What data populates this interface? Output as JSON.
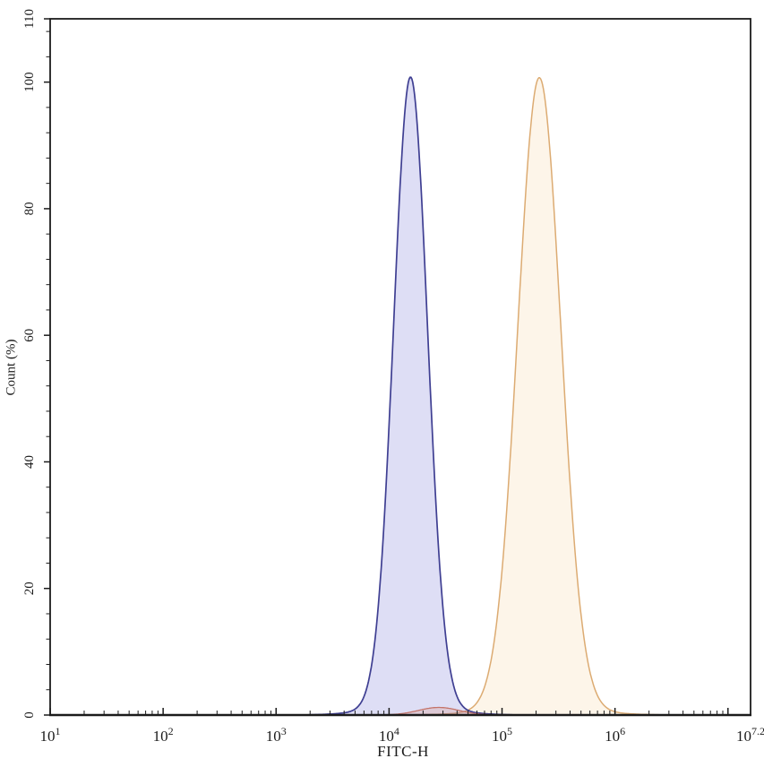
{
  "chart_data": {
    "type": "area",
    "chart_kind": "flow-cytometry-histogram",
    "title": "",
    "xlabel": "FITC-H",
    "ylabel": "Count (%)",
    "x_scale": "log10",
    "x_range_log10": [
      1,
      7.2
    ],
    "x_major_ticks_log10": [
      1,
      2,
      3,
      4,
      5,
      6,
      7
    ],
    "x_minor_tick_mantissas": [
      2,
      3,
      4,
      5,
      6,
      7,
      8,
      9
    ],
    "x_tick_labels": [
      {
        "log10": 1,
        "base": "10",
        "exponent": "1"
      },
      {
        "log10": 2,
        "base": "10",
        "exponent": "2"
      },
      {
        "log10": 3,
        "base": "10",
        "exponent": "3"
      },
      {
        "log10": 4,
        "base": "10",
        "exponent": "4"
      },
      {
        "log10": 5,
        "base": "10",
        "exponent": "5"
      },
      {
        "log10": 6,
        "base": "10",
        "exponent": "6"
      },
      {
        "log10": 7.2,
        "base": "10",
        "exponent": "7.2"
      }
    ],
    "y_range": [
      0,
      110
    ],
    "y_major_ticks": [
      0,
      20,
      40,
      60,
      80,
      100,
      110
    ],
    "y_minor_tick_step": 4,
    "grid": false,
    "legend": "none",
    "axis_color": "#1b1b1b",
    "background_color": "#ffffff",
    "series": [
      {
        "name": "orange-peak",
        "peak_log10": 5.33,
        "peak_x_value": 214000,
        "peak_height_pct": 99.5,
        "sigma_log10": 0.19,
        "foot_height_pct": 1.2,
        "foot_sigma_scale": 2.2,
        "stroke_color": "#dcab72",
        "fill_color": "rgba(240,190,120,0.16)",
        "stroke_width": 1.5
      },
      {
        "name": "blue-peak",
        "peak_log10": 4.19,
        "peak_x_value": 15500,
        "peak_height_pct": 99.5,
        "sigma_log10": 0.15,
        "foot_height_pct": 1.3,
        "foot_sigma_scale": 2.3,
        "stroke_color": "#3f3f92",
        "fill_color": "rgba(122,122,216,0.25)",
        "stroke_width": 1.7
      },
      {
        "name": "red-baseline-trace",
        "peak_log10": 4.44,
        "peak_x_value": 27500,
        "peak_height_pct": 1.2,
        "sigma_log10": 0.18,
        "foot_height_pct": 0,
        "foot_sigma_scale": 1,
        "stroke_color": "#c4746a",
        "fill_color": "rgba(220,140,120,0.25)",
        "stroke_width": 1.3
      }
    ]
  }
}
